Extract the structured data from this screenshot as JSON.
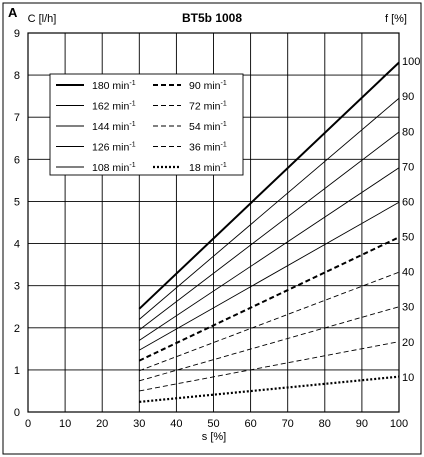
{
  "chart_data": {
    "type": "line",
    "panel_label": "A",
    "title": "BT5b 1008",
    "xlabel": "s [%]",
    "ylabel_left": "C [l/h]",
    "ylabel_right": "f [%]",
    "xlim": [
      0,
      100
    ],
    "ylim_left": [
      0,
      9
    ],
    "ylim_right": [
      0,
      108
    ],
    "x_ticks": [
      "0",
      "10",
      "20",
      "30",
      "40",
      "50",
      "60",
      "70",
      "80",
      "90",
      "100"
    ],
    "y_left_ticks": [
      "0",
      "1",
      "2",
      "3",
      "4",
      "5",
      "6",
      "7",
      "8",
      "9"
    ],
    "y_right_ticks": [
      "10",
      "20",
      "30",
      "40",
      "50",
      "60",
      "70",
      "80",
      "90",
      "100"
    ],
    "grid": true,
    "legend_unit_base": "min",
    "legend_unit_exp": "-1",
    "series": [
      {
        "name": "180",
        "style": "solid-thick",
        "x": [
          30,
          100
        ],
        "y": [
          2.45,
          8.3
        ]
      },
      {
        "name": "162",
        "style": "solid",
        "x": [
          30,
          100
        ],
        "y": [
          2.2,
          7.45
        ]
      },
      {
        "name": "144",
        "style": "solid",
        "x": [
          30,
          100
        ],
        "y": [
          1.95,
          6.65
        ]
      },
      {
        "name": "126",
        "style": "solid",
        "x": [
          30,
          100
        ],
        "y": [
          1.7,
          5.8
        ]
      },
      {
        "name": "108",
        "style": "solid",
        "x": [
          30,
          100
        ],
        "y": [
          1.47,
          4.98
        ]
      },
      {
        "name": "90",
        "style": "dashed-thick",
        "x": [
          30,
          100
        ],
        "y": [
          1.22,
          4.15
        ]
      },
      {
        "name": "72",
        "style": "dashed",
        "x": [
          30,
          100
        ],
        "y": [
          0.98,
          3.32
        ]
      },
      {
        "name": "54",
        "style": "dashed",
        "x": [
          30,
          100
        ],
        "y": [
          0.74,
          2.5
        ]
      },
      {
        "name": "36",
        "style": "dashed",
        "x": [
          30,
          100
        ],
        "y": [
          0.5,
          1.67
        ]
      },
      {
        "name": "18",
        "style": "dotted-thick",
        "x": [
          30,
          100
        ],
        "y": [
          0.24,
          0.84
        ]
      }
    ],
    "legend_columns": [
      [
        "180",
        "162",
        "144",
        "126",
        "108"
      ],
      [
        "90",
        "72",
        "54",
        "36",
        "18"
      ]
    ],
    "legend_position": "top-left"
  }
}
